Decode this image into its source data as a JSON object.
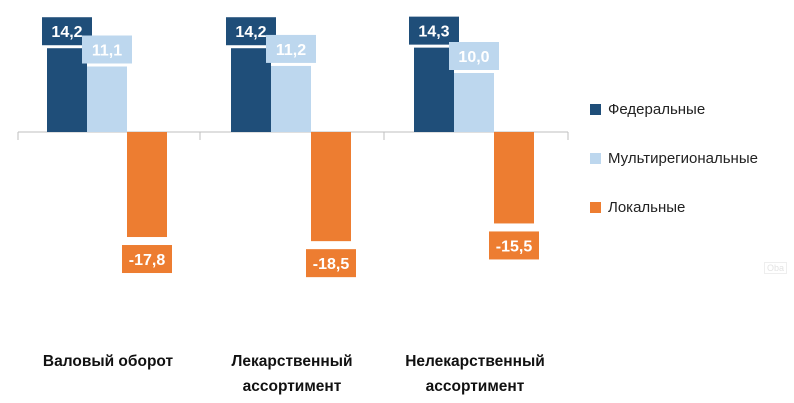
{
  "chart_data": {
    "type": "bar",
    "categories": [
      "Валовый оборот",
      "Лекарственный ассортимент",
      "Нелекарственный ассортимент"
    ],
    "category_lines": [
      [
        "Валовый оборот"
      ],
      [
        "Лекарственный",
        "ассортимент"
      ],
      [
        "Нелекарственный",
        "ассортимент"
      ]
    ],
    "series": [
      {
        "name": "Федеральные",
        "values": [
          14.2,
          14.2,
          14.3
        ],
        "labels": [
          "14,2",
          "14,2",
          "14,3"
        ],
        "color": "#1f4e79"
      },
      {
        "name": "Мультирегиональные",
        "values": [
          11.1,
          11.2,
          10.0
        ],
        "labels": [
          "11,1",
          "11,2",
          "10,0"
        ],
        "color": "#bdd7ee"
      },
      {
        "name": "Локальные",
        "values": [
          -17.8,
          -18.5,
          -15.5
        ],
        "labels": [
          "-17,8",
          "-18,5",
          "-15,5"
        ],
        "color": "#ed7d31"
      }
    ],
    "ylim": [
      -22,
      22
    ],
    "legend_position": "right",
    "grid": false
  },
  "watermark": "Oba"
}
